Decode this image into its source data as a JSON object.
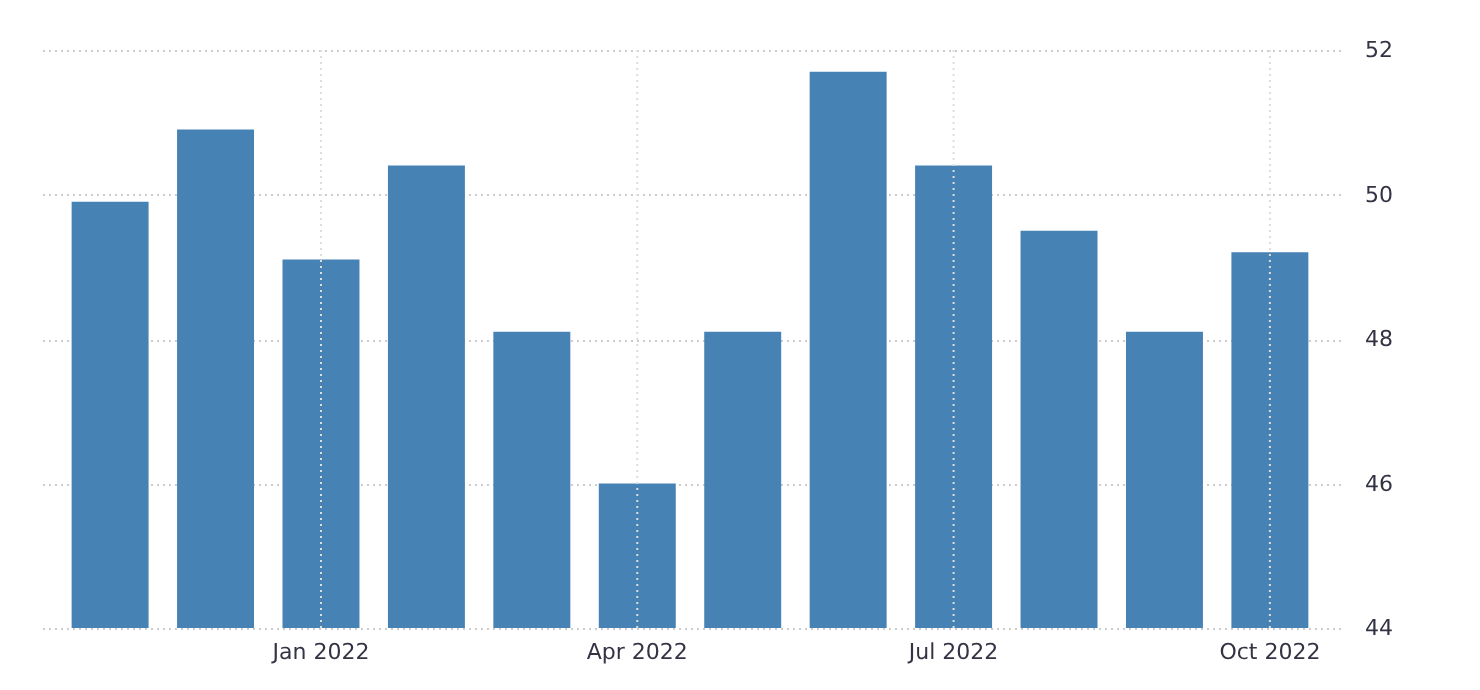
{
  "chart_data": {
    "type": "bar",
    "categories": [
      null,
      null,
      "Jan 2022",
      null,
      null,
      "Apr 2022",
      null,
      null,
      "Jul 2022",
      null,
      null,
      "Oct 2022"
    ],
    "values": [
      49.9,
      50.9,
      49.1,
      50.4,
      48.1,
      46.0,
      48.1,
      51.7,
      50.4,
      49.5,
      48.1,
      49.2
    ],
    "color": "#4682b4",
    "ylim": [
      44,
      52
    ],
    "yticks": [
      44,
      46,
      48,
      50,
      52
    ],
    "grid": true
  }
}
